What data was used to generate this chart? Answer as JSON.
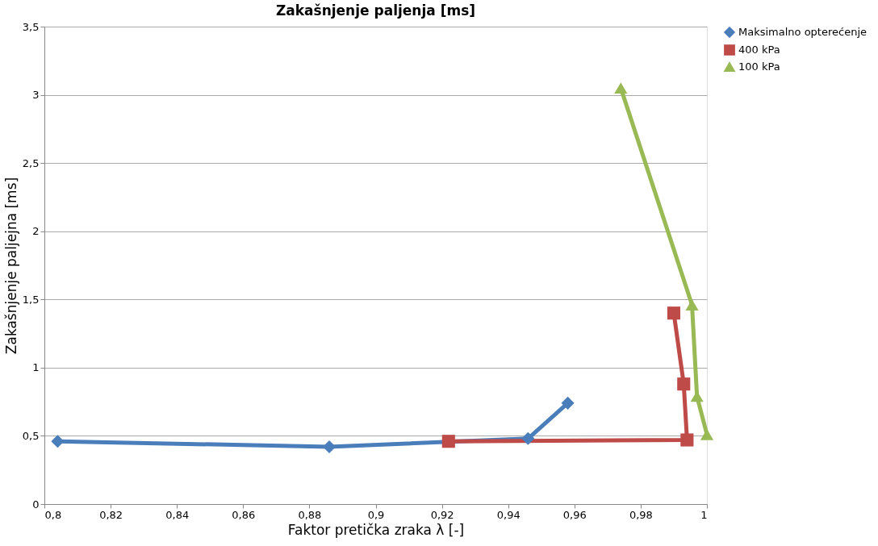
{
  "chart_data": {
    "type": "line",
    "title": "Zakašnjenje paljenja [ms]",
    "xlabel": "Faktor pretička zraka λ [-]",
    "ylabel": "Zakašnjenje paljejna [ms]",
    "xlim": [
      0.8,
      1
    ],
    "xticks": [
      {
        "value": 0.8,
        "label": "0,8"
      },
      {
        "value": 0.82,
        "label": "0,82"
      },
      {
        "value": 0.84,
        "label": "0,84"
      },
      {
        "value": 0.86,
        "label": "0,86"
      },
      {
        "value": 0.88,
        "label": "0,88"
      },
      {
        "value": 0.9,
        "label": "0,9"
      },
      {
        "value": 0.92,
        "label": "0,92"
      },
      {
        "value": 0.94,
        "label": "0,94"
      },
      {
        "value": 0.96,
        "label": "0,96"
      },
      {
        "value": 0.98,
        "label": "0,98"
      },
      {
        "value": 1,
        "label": "1"
      }
    ],
    "ylim": [
      0,
      3.5
    ],
    "yticks": [
      0,
      {
        "value": 0.5,
        "label": "0,5"
      },
      1,
      {
        "value": 1.5,
        "label": "1,5"
      },
      2,
      {
        "value": 2.5,
        "label": "2,5"
      },
      3,
      {
        "value": 3.5,
        "label": "3,5"
      }
    ],
    "grid": "y",
    "legend": "right",
    "series": [
      {
        "name": "Maksimalno opterećenje",
        "color": "#4a7ebb",
        "marker": "diamond",
        "x": [
          0.804,
          0.886,
          0.922,
          0.946,
          0.958
        ],
        "values": [
          0.46,
          0.42,
          null,
          0.48,
          0.74
        ]
      },
      {
        "name": "400 kPa",
        "color": "#be4b48",
        "marker": "square",
        "x": [
          0.922,
          0.994,
          0.993,
          0.99
        ],
        "values": [
          0.46,
          0.47,
          0.88,
          1.4
        ]
      },
      {
        "name": "100 kPa",
        "color": "#98b954",
        "marker": "triangle",
        "x": [
          0.974,
          0.9955,
          0.997,
          1.0
        ],
        "values": [
          3.05,
          1.46,
          0.79,
          0.51
        ]
      }
    ]
  }
}
